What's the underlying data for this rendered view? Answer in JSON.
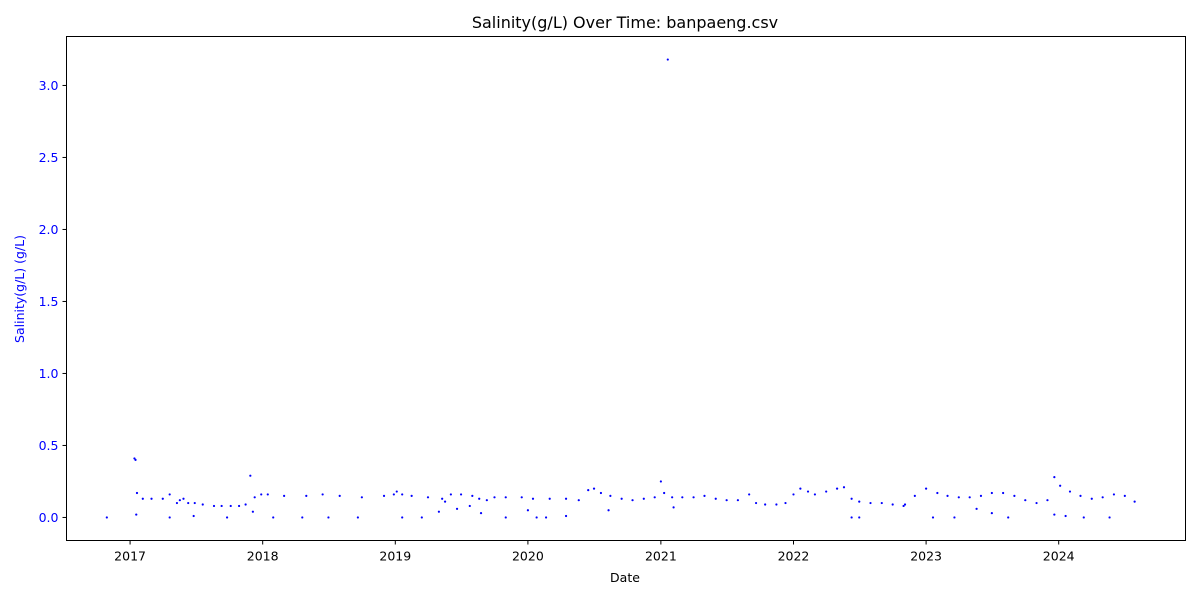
{
  "chart_data": {
    "type": "scatter",
    "title": "Salinity(g/L) Over Time: banpaeng.csv",
    "xlabel": "Date",
    "ylabel": "Salinity(g/L) (g/L)",
    "xlim": [
      "2016-07-10",
      "2024-12-15"
    ],
    "ylim": [
      -0.16,
      3.34
    ],
    "x_ticks": [
      "2017",
      "2018",
      "2019",
      "2020",
      "2021",
      "2022",
      "2023",
      "2024"
    ],
    "y_ticks": [
      "0.0",
      "0.5",
      "1.0",
      "1.5",
      "2.0",
      "2.5",
      "3.0"
    ],
    "grid": false,
    "series_color": "#0000ff",
    "y_axis_color": "#0000ff",
    "series": [
      {
        "x": [
          "2016-10-29",
          "2017-01-13",
          "2017-01-16",
          "2017-01-20",
          "2017-02-05",
          "2017-03-01",
          "2017-04-01",
          "2017-04-20",
          "2017-05-10",
          "2017-05-18",
          "2017-05-28",
          "2017-06-10",
          "2017-06-28",
          "2017-07-20",
          "2017-08-20",
          "2017-09-10",
          "2017-10-05",
          "2017-10-28",
          "2017-11-15",
          "2017-12-10",
          "2017-12-28",
          "2018-01-15",
          "2018-03-01",
          "2018-05-01",
          "2018-06-15",
          "2018-08-01",
          "2018-10-01",
          "2018-12-01",
          "2018-12-28",
          "2019-01-05",
          "2019-01-20",
          "2019-02-15",
          "2019-04-01",
          "2019-05-10",
          "2019-05-18",
          "2019-06-03",
          "2019-07-01",
          "2019-08-01",
          "2019-08-20",
          "2019-09-10",
          "2019-10-01",
          "2019-11-01",
          "2019-12-15",
          "2020-01-15",
          "2020-03-01",
          "2020-04-15",
          "2020-05-20",
          "2020-06-15",
          "2020-07-01",
          "2020-07-20",
          "2020-08-15",
          "2020-09-15",
          "2020-10-15",
          "2020-11-15",
          "2020-12-15",
          "2021-01-01",
          "2021-01-10",
          "2021-02-01",
          "2021-03-01",
          "2021-04-01",
          "2021-05-01",
          "2021-06-01",
          "2021-07-01",
          "2021-08-01",
          "2021-09-01",
          "2021-09-20",
          "2021-10-15",
          "2021-11-15",
          "2021-12-10",
          "2022-01-01",
          "2022-01-20",
          "2022-02-10",
          "2022-03-01",
          "2022-04-01",
          "2022-05-01",
          "2022-05-20",
          "2022-06-10",
          "2022-07-01",
          "2022-08-01",
          "2022-09-01",
          "2022-10-01",
          "2022-10-31",
          "2022-11-04",
          "2022-12-01",
          "2023-01-01",
          "2023-02-01",
          "2023-03-01",
          "2023-04-01",
          "2023-05-01",
          "2023-06-01",
          "2023-07-01",
          "2023-08-01",
          "2023-09-01",
          "2023-10-01",
          "2023-11-01",
          "2023-12-01",
          "2023-12-20",
          "2024-01-05",
          "2024-02-01",
          "2024-03-01",
          "2024-04-01",
          "2024-05-01",
          "2024-06-01",
          "2024-07-01",
          "2024-07-28",
          "2021-01-20",
          "2017-11-28",
          "2017-01-18",
          "2017-04-20",
          "2017-06-25",
          "2017-09-25",
          "2017-12-05",
          "2018-01-30",
          "2018-04-20",
          "2018-07-01",
          "2018-09-20",
          "2019-01-20",
          "2019-03-15",
          "2019-05-01",
          "2019-06-20",
          "2019-07-25",
          "2019-08-25",
          "2019-11-01",
          "2020-01-01",
          "2020-01-25",
          "2020-02-20",
          "2020-04-15",
          "2020-08-10",
          "2021-02-05",
          "2022-06-10",
          "2022-07-01",
          "2023-01-20",
          "2023-03-20",
          "2023-05-20",
          "2023-07-01",
          "2023-08-15",
          "2023-12-20",
          "2024-01-20",
          "2024-03-10",
          "2024-05-20"
        ],
        "y": [
          0.0,
          0.41,
          0.4,
          0.17,
          0.13,
          0.13,
          0.13,
          0.16,
          0.1,
          0.12,
          0.13,
          0.1,
          0.1,
          0.09,
          0.08,
          0.08,
          0.08,
          0.08,
          0.09,
          0.14,
          0.16,
          0.16,
          0.15,
          0.15,
          0.16,
          0.15,
          0.14,
          0.15,
          0.16,
          0.18,
          0.16,
          0.15,
          0.14,
          0.13,
          0.11,
          0.16,
          0.16,
          0.15,
          0.13,
          0.12,
          0.14,
          0.14,
          0.14,
          0.13,
          0.13,
          0.13,
          0.12,
          0.19,
          0.2,
          0.17,
          0.15,
          0.13,
          0.12,
          0.13,
          0.14,
          0.25,
          0.17,
          0.14,
          0.14,
          0.14,
          0.15,
          0.13,
          0.12,
          0.12,
          0.16,
          0.1,
          0.09,
          0.09,
          0.1,
          0.16,
          0.2,
          0.18,
          0.16,
          0.18,
          0.2,
          0.21,
          0.13,
          0.11,
          0.1,
          0.1,
          0.09,
          0.08,
          0.09,
          0.15,
          0.2,
          0.17,
          0.15,
          0.14,
          0.14,
          0.15,
          0.17,
          0.17,
          0.15,
          0.12,
          0.1,
          0.12,
          0.28,
          0.22,
          0.18,
          0.15,
          0.13,
          0.14,
          0.16,
          0.15,
          0.11,
          3.18,
          0.29,
          0.02,
          0.0,
          0.01,
          0.0,
          0.04,
          0.0,
          0.0,
          0.0,
          0.0,
          0.0,
          0.0,
          0.04,
          0.06,
          0.08,
          0.03,
          0.0,
          0.05,
          0.0,
          0.0,
          0.01,
          0.05,
          0.07,
          0.0,
          0.0,
          0.0,
          0.0,
          0.06,
          0.03,
          0.0,
          0.02,
          0.01,
          0.0,
          0.0
        ]
      }
    ]
  }
}
